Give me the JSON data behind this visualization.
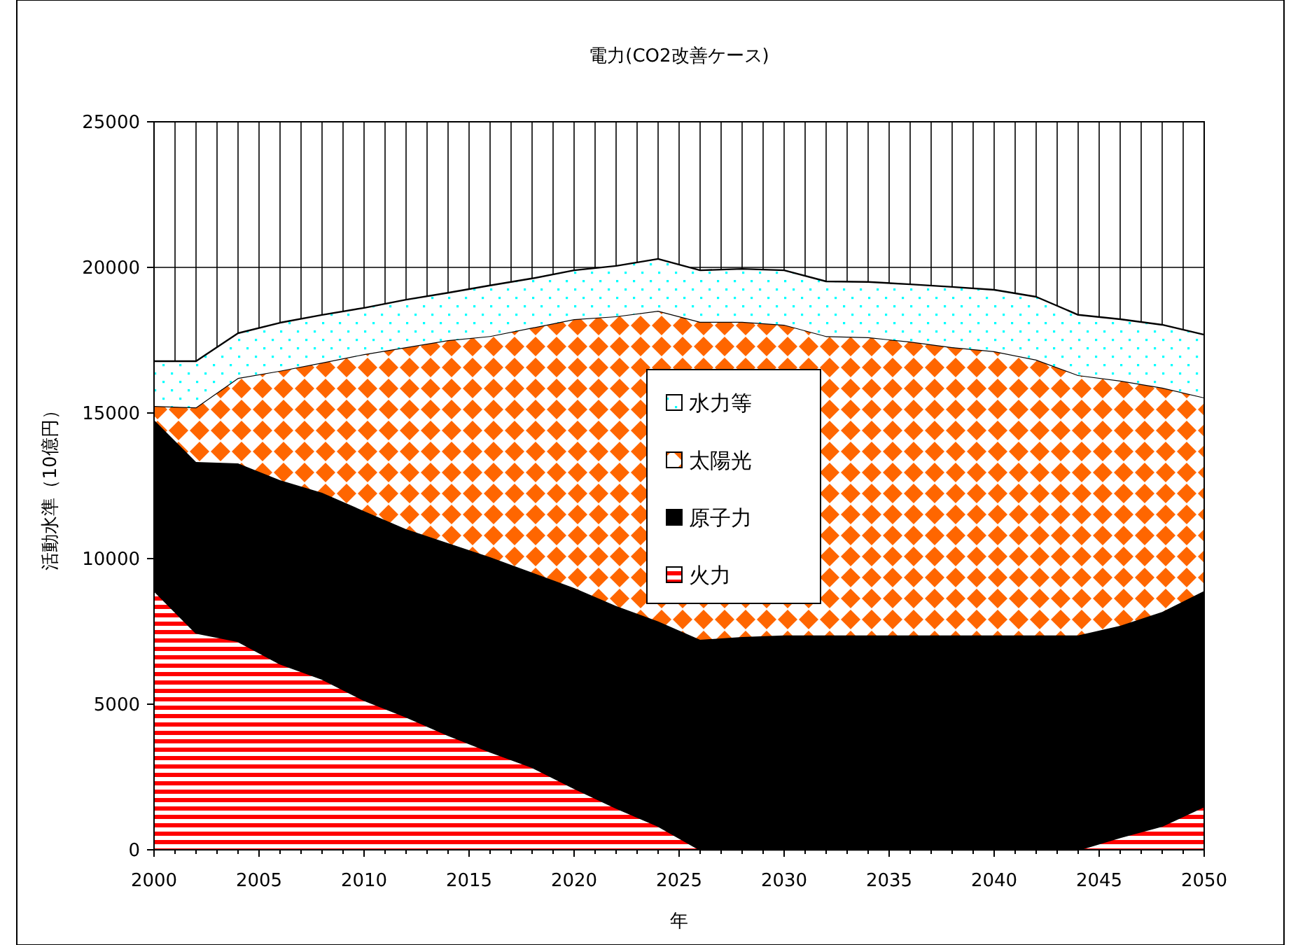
{
  "chart_data": {
    "type": "area",
    "stacked": true,
    "title": "電力(CO2改善ケース)",
    "xlabel": "年",
    "ylabel": "活動水準（10億円）",
    "x": [
      2000,
      2002,
      2004,
      2006,
      2008,
      2010,
      2012,
      2014,
      2016,
      2018,
      2020,
      2022,
      2024,
      2026,
      2028,
      2030,
      2032,
      2034,
      2036,
      2038,
      2040,
      2042,
      2044,
      2046,
      2048,
      2050
    ],
    "series": [
      {
        "name": "火力",
        "color": "#ff0000",
        "values": [
          8900,
          7450,
          7160,
          6390,
          5870,
          5140,
          4570,
          3940,
          3370,
          2840,
          2120,
          1440,
          820,
          0,
          0,
          0,
          0,
          0,
          0,
          0,
          0,
          0,
          0,
          430,
          820,
          1490
        ]
      },
      {
        "name": "原子力",
        "color": "#000000",
        "values": [
          5860,
          5870,
          6110,
          6300,
          6390,
          6490,
          6440,
          6590,
          6680,
          6680,
          6870,
          6930,
          7020,
          7210,
          7310,
          7360,
          7360,
          7360,
          7360,
          7360,
          7360,
          7360,
          7360,
          7260,
          7350,
          7400
        ]
      },
      {
        "name": "太陽光",
        "color": "#ff6600",
        "values": [
          480,
          1870,
          2930,
          3760,
          4470,
          5390,
          6250,
          6970,
          7590,
          8410,
          9230,
          9950,
          10670,
          10920,
          10820,
          10670,
          10280,
          10240,
          10090,
          9900,
          9760,
          9470,
          8940,
          8420,
          7700,
          6640
        ]
      },
      {
        "name": "水力等",
        "color": "#00ffff",
        "values": [
          1540,
          1590,
          1540,
          1650,
          1640,
          1590,
          1630,
          1630,
          1740,
          1690,
          1680,
          1730,
          1780,
          1770,
          1820,
          1870,
          1880,
          1900,
          1970,
          2070,
          2110,
          2160,
          2070,
          2110,
          2160,
          2160
        ]
      }
    ],
    "xlim": [
      2000,
      2050
    ],
    "xticks": [
      2000,
      2005,
      2010,
      2015,
      2020,
      2025,
      2030,
      2035,
      2040,
      2045,
      2050
    ],
    "ylim": [
      0,
      25000
    ],
    "yticks": [
      0,
      5000,
      10000,
      15000,
      20000,
      25000
    ],
    "grid": true,
    "legend": "center"
  }
}
